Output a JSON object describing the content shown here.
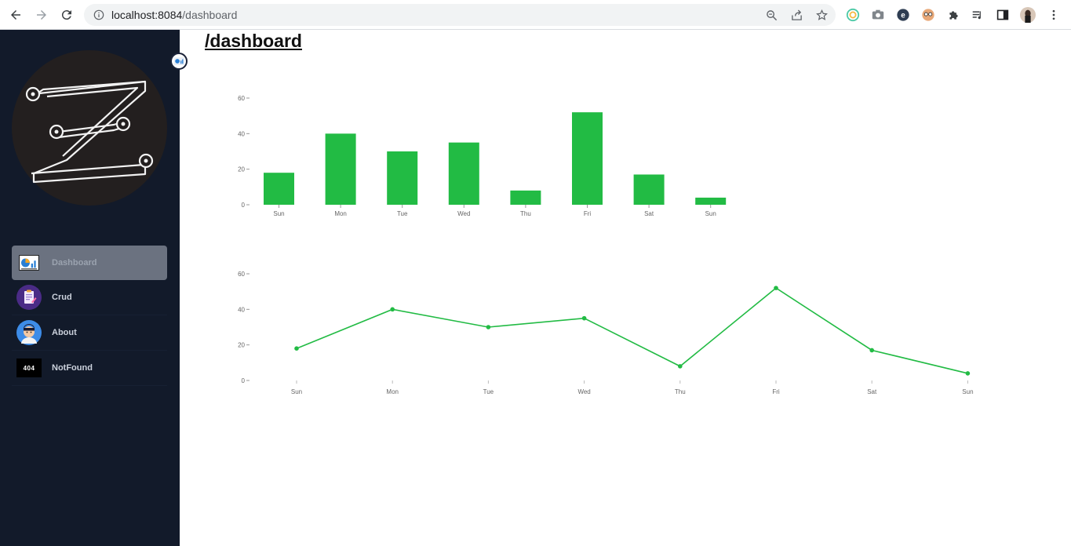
{
  "browser": {
    "url_host": "localhost:8084",
    "url_path": "/dashboard"
  },
  "sidebar": {
    "items": [
      {
        "label": "Dashboard",
        "icon": "dashboard-icon",
        "active": true
      },
      {
        "label": "Crud",
        "icon": "clipboard-icon",
        "active": false
      },
      {
        "label": "About",
        "icon": "user-avatar-icon",
        "active": false
      },
      {
        "label": "NotFound",
        "icon": "404-icon",
        "active": false
      }
    ],
    "notfound_icon_text": "404"
  },
  "main": {
    "title": "/dashboard"
  },
  "colors": {
    "accent": "#22bb44",
    "sidebar_bg": "#121a2a",
    "active_item_bg": "#6b7280"
  },
  "chart_data": [
    {
      "type": "bar",
      "categories": [
        "Sun",
        "Mon",
        "Tue",
        "Wed",
        "Thu",
        "Fri",
        "Sat",
        "Sun"
      ],
      "values": [
        18,
        40,
        30,
        35,
        8,
        52,
        17,
        4
      ],
      "ylim": [
        0,
        60
      ],
      "yticks": [
        0,
        20,
        40,
        60
      ],
      "color": "#22bb44",
      "grid": false
    },
    {
      "type": "line",
      "categories": [
        "Sun",
        "Mon",
        "Tue",
        "Wed",
        "Thu",
        "Fri",
        "Sat",
        "Sun"
      ],
      "values": [
        18,
        40,
        30,
        35,
        8,
        52,
        17,
        4
      ],
      "ylim": [
        0,
        60
      ],
      "yticks": [
        0,
        20,
        40,
        60
      ],
      "color": "#22bb44",
      "grid": false
    }
  ]
}
